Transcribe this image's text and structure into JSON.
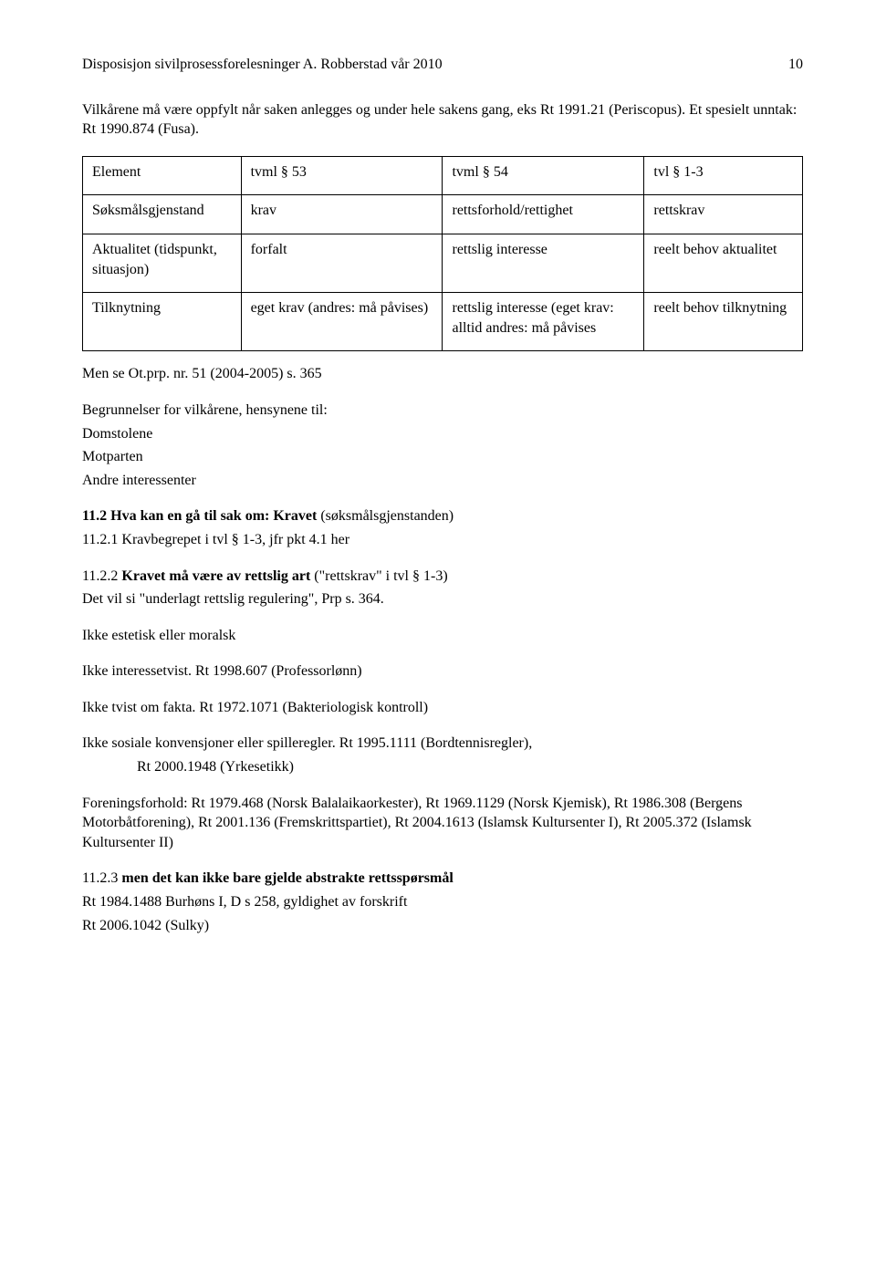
{
  "header": {
    "left": "Disposisjon sivilprosessforelesninger A. Robberstad vår 2010",
    "page": "10"
  },
  "intro": {
    "line1": "Vilkårene må være oppfylt når saken anlegges og under hele sakens gang, eks Rt 1991.21 (Periscopus). Et spesielt unntak: Rt 1990.874 (Fusa)."
  },
  "table": {
    "row1": {
      "c1": "Element",
      "c2": "tvml § 53",
      "c3": "tvml § 54",
      "c4": "tvl § 1-3"
    },
    "row2": {
      "c1": "Søksmålsgjenstand",
      "c2": "krav",
      "c3": "rettsforhold/rettighet",
      "c4": "rettskrav"
    },
    "row3": {
      "c1": "Aktualitet (tidspunkt, situasjon)",
      "c2": "forfalt",
      "c3": "rettslig interesse",
      "c4": "reelt behov aktualitet"
    },
    "row4": {
      "c1": "Tilknytning",
      "c2": "eget krav (andres: må påvises)",
      "c3": "rettslig interesse (eget krav: alltid andres: må påvises",
      "c4": "reelt behov tilknytning"
    }
  },
  "body": {
    "menSe": "Men se Ot.prp. nr. 51 (2004-2005) s. 365",
    "begrunn1": "Begrunnelser for vilkårene, hensynene til:",
    "begrunn2": "Domstolene",
    "begrunn3": "Motparten",
    "begrunn4": "Andre interessenter",
    "s112a": "11.2 Hva kan en gå til sak om: Kravet",
    "s112b": " (søksmålsgjenstanden)",
    "s1121": "11.2.1 Kravbegrepet i tvl § 1-3, jfr pkt 4.1 her",
    "s1122a": "11.2.2 ",
    "s1122b": "Kravet må være av rettslig art",
    "s1122c": " (\"rettskrav\" i tvl § 1-3)",
    "s1122d": "Det vil si \"underlagt rettslig regulering\", Prp s. 364.",
    "ikke1": "Ikke estetisk eller moralsk",
    "ikke2": "Ikke interessetvist. Rt 1998.607 (Professorlønn)",
    "ikke3": "Ikke tvist om fakta. Rt 1972.1071 (Bakteriologisk kontroll)",
    "ikke4a": "Ikke sosiale konvensjoner eller spilleregler. Rt 1995.1111 (Bordtennisregler),",
    "ikke4b": "Rt 2000.1948 (Yrkesetikk)",
    "foren": "Foreningsforhold: Rt 1979.468 (Norsk Balalaikaorkester), Rt 1969.1129 (Norsk Kjemisk), Rt 1986.308 (Bergens Motorbåtforening), Rt 2001.136 (Fremskrittspartiet), Rt 2004.1613 (Islamsk Kultursenter I), Rt 2005.372 (Islamsk Kultursenter II)",
    "s1123a": "11.2.3 ",
    "s1123b": "men det kan ikke bare gjelde abstrakte rettsspørsmål",
    "s1123c": "Rt 1984.1488 Burhøns I, D s 258, gyldighet av forskrift",
    "s1123d": "Rt 2006.1042 (Sulky)"
  }
}
